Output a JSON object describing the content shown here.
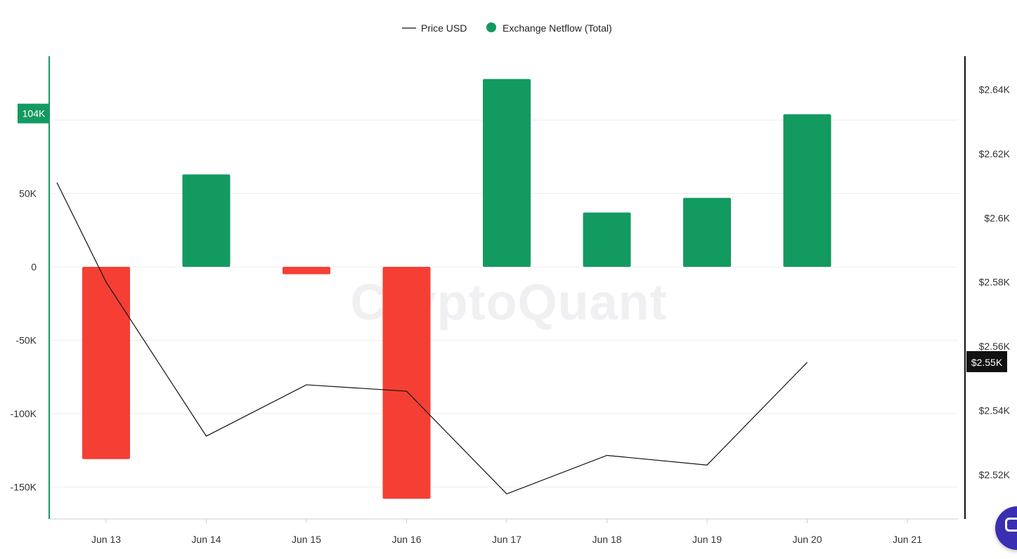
{
  "chart_data": {
    "type": "bar",
    "categories": [
      "Jun 13",
      "Jun 14",
      "Jun 15",
      "Jun 16",
      "Jun 17",
      "Jun 18",
      "Jun 19",
      "Jun 20",
      "Jun 21"
    ],
    "series": [
      {
        "name": "Exchange Netflow (Total)",
        "type": "bar",
        "axis": "left",
        "values": [
          -131000,
          63000,
          -5000,
          -158000,
          128000,
          37000,
          47000,
          104000,
          null
        ]
      },
      {
        "name": "Price USD",
        "type": "line",
        "axis": "right",
        "values": [
          2580,
          2532,
          2548,
          2546,
          2514,
          2526,
          2523,
          2555,
          null
        ]
      }
    ],
    "left_axis": {
      "ticks": [
        50000,
        0,
        -50000,
        -100000,
        -150000
      ],
      "tick_labels": [
        "50K",
        "0",
        "-50K",
        "-100K",
        "-150K"
      ],
      "ylim": [
        -170000,
        145000
      ]
    },
    "right_axis": {
      "ticks": [
        2640,
        2620,
        2600,
        2580,
        2560,
        2540,
        2520
      ],
      "tick_labels": [
        "$2.64K",
        "$2.62K",
        "$2.6K",
        "$2.58K",
        "$2.56K",
        "$2.54K",
        "$2.52K"
      ],
      "ylim": [
        2507,
        2650
      ]
    },
    "line_start": 2611,
    "legend_position": "top-center",
    "grid": true,
    "left_badge": "104K",
    "right_badge": "$2.55K",
    "watermark": "CryptoQuant",
    "colors": {
      "positive_bar": "#139a61",
      "negative_bar": "#f53f35",
      "price_line": "#111111",
      "left_axis_line": "#139a61",
      "right_axis_line": "#111111",
      "right_badge_bg": "#111111"
    },
    "legend": [
      {
        "label": "Price USD",
        "marker": "line"
      },
      {
        "label": "Exchange Netflow (Total)",
        "marker": "dot"
      }
    ]
  },
  "chat_widget": {
    "icon": "chat-bubble-icon"
  }
}
